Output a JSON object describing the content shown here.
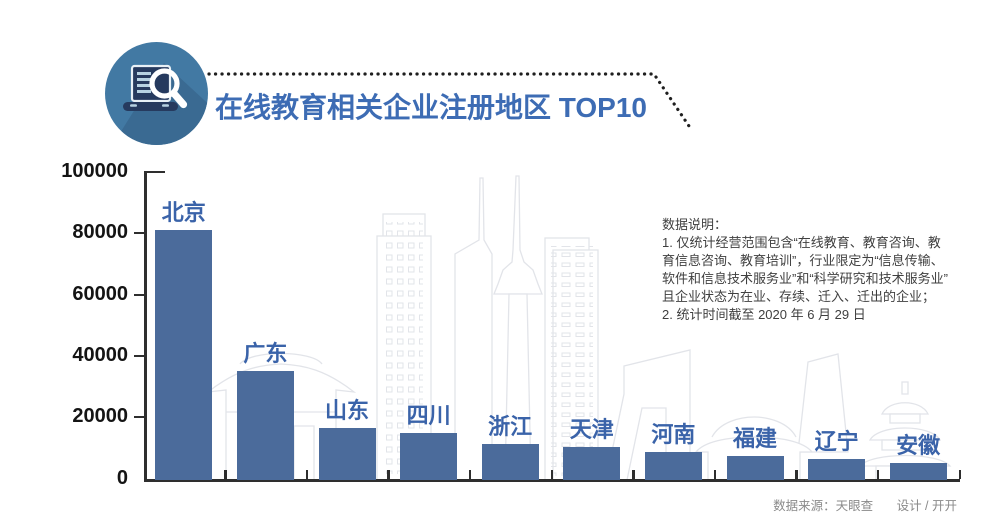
{
  "header": {
    "title": "在线教育相关企业注册地区 TOP10"
  },
  "chart_data": {
    "type": "bar",
    "title": "在线教育相关企业注册地区 TOP10",
    "categories": [
      "北京",
      "广东",
      "山东",
      "四川",
      "浙江",
      "天津",
      "河南",
      "福建",
      "辽宁",
      "安徽"
    ],
    "values": [
      81000,
      35000,
      16500,
      15000,
      11200,
      10200,
      8600,
      7300,
      6500,
      5000
    ],
    "ylim": [
      0,
      100000
    ],
    "yticks": [
      0,
      20000,
      40000,
      60000,
      80000,
      100000
    ],
    "xlabel": "",
    "ylabel": "",
    "grid": false,
    "legend": "none",
    "bar_color": "#4b6b9b",
    "label_color": "#3a63a9"
  },
  "notes": {
    "lines": [
      "数据说明：",
      "1. 仅统计经营范围包含“在线教育、教育咨询、教",
      "育信息咨询、教育培训”，行业限定为“信息传输、",
      "软件和信息技术服务业”和“科学研究和技术服务业”",
      "且企业状态为在业、存续、迁入、迁出的企业；",
      "2. 统计时间截至 2020 年 6 月 29 日"
    ]
  },
  "footer": {
    "source": "数据来源：天眼查",
    "design": "设计 / 开开"
  },
  "colors": {
    "title": "#3d6cb4",
    "axis": "#2e2e2e",
    "bar": "#4b6b9b",
    "icon_circle": "#4279a3",
    "icon_laptop": "#263a5e",
    "skyline": "#e2e4e9"
  }
}
